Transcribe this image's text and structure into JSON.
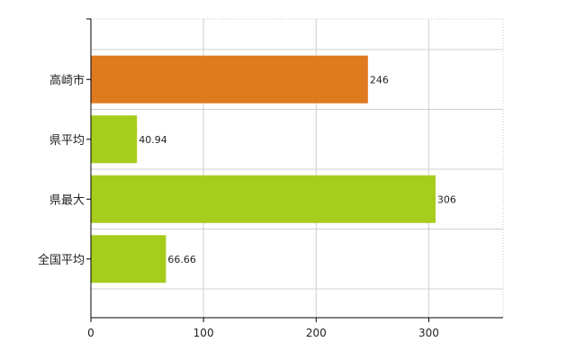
{
  "chart_data": {
    "type": "bar",
    "orientation": "horizontal",
    "categories": [
      "高崎市",
      "県平均",
      "県最大",
      "全国平均"
    ],
    "values": [
      246,
      40.94,
      306,
      66.66
    ],
    "data_labels": [
      "246",
      "40.94",
      "306",
      "66.66"
    ],
    "colors": [
      "#E07A1F",
      "#A6CC1C",
      "#A6CC1C",
      "#A6CC1C"
    ],
    "xlim": [
      0,
      366
    ],
    "x_ticks": [
      0,
      100,
      200,
      300
    ],
    "x_tick_labels": [
      "0",
      "100",
      "200",
      "300"
    ],
    "grid": true,
    "title": "",
    "xlabel": "",
    "ylabel": ""
  }
}
